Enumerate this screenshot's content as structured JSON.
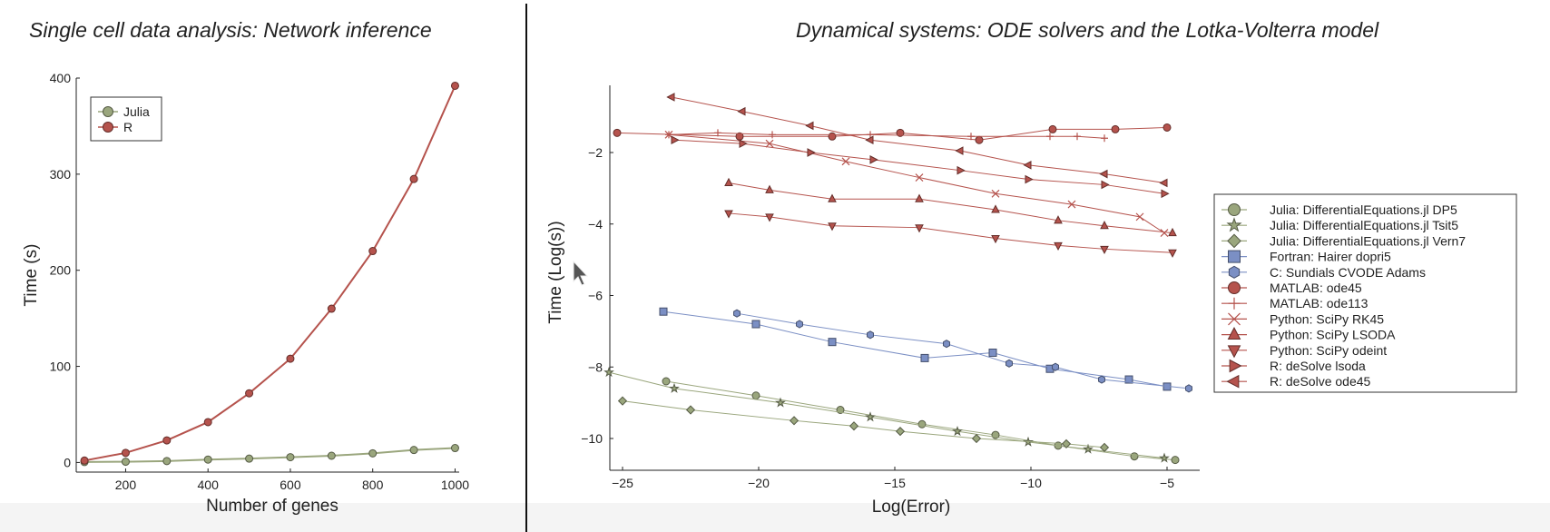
{
  "titles": {
    "left": "Single cell data analysis: Network inference",
    "right": "Dynamical systems: ODE solvers and the Lotka-Volterra model"
  },
  "chart_data": [
    {
      "type": "line",
      "xlabel": "Number of genes",
      "ylabel": "Time (s)",
      "xlim": [
        80,
        1010
      ],
      "ylim": [
        -10,
        400
      ],
      "xticks": [
        200,
        400,
        600,
        800,
        1000
      ],
      "yticks": [
        0,
        100,
        200,
        300,
        400
      ],
      "grid": false,
      "legend": "top-left",
      "x": [
        100,
        200,
        300,
        400,
        500,
        600,
        700,
        800,
        900,
        1000
      ],
      "series": [
        {
          "name": "Julia",
          "color": "#9aa67d",
          "marker": "circle",
          "values": [
            0.5,
            0.8,
            1.5,
            3.0,
            4.0,
            5.5,
            7.0,
            9.5,
            13,
            15
          ]
        },
        {
          "name": "R",
          "color": "#b5534d",
          "marker": "circle",
          "values": [
            2,
            10,
            23,
            42,
            72,
            108,
            160,
            220,
            295,
            392
          ]
        }
      ]
    },
    {
      "type": "line",
      "xlabel": "Log(Error)",
      "ylabel": "Time (Log(s))",
      "xlim": [
        -26,
        -4
      ],
      "ylim": [
        -11,
        -0.2
      ],
      "xticks": [
        -25,
        -20,
        -15,
        -10,
        -5
      ],
      "yticks": [
        -10,
        -8,
        -6,
        -4,
        -2
      ],
      "grid": false,
      "legend": "right",
      "series": [
        {
          "name": "Julia: DifferentialEquations.jl DP5",
          "color": "#9aa67d",
          "marker": "circle",
          "points": [
            [
              -23.4,
              -8.4
            ],
            [
              -20.1,
              -8.8
            ],
            [
              -17,
              -9.2
            ],
            [
              -14,
              -9.6
            ],
            [
              -11.3,
              -9.9
            ],
            [
              -9,
              -10.2
            ],
            [
              -6.2,
              -10.5
            ],
            [
              -4.7,
              -10.6
            ]
          ]
        },
        {
          "name": "Julia: DifferentialEquations.jl Tsit5",
          "color": "#9aa67d",
          "marker": "star",
          "points": [
            [
              -25.5,
              -8.15
            ],
            [
              -23.1,
              -8.6
            ],
            [
              -19.2,
              -9.0
            ],
            [
              -15.9,
              -9.4
            ],
            [
              -12.7,
              -9.8
            ],
            [
              -10.1,
              -10.1
            ],
            [
              -7.9,
              -10.3
            ],
            [
              -5.1,
              -10.55
            ]
          ]
        },
        {
          "name": "Julia: DifferentialEquations.jl Vern7",
          "color": "#9aa67d",
          "marker": "diamond",
          "points": [
            [
              -25,
              -8.95
            ],
            [
              -22.5,
              -9.2
            ],
            [
              -18.7,
              -9.5
            ],
            [
              -16.5,
              -9.65
            ],
            [
              -14.8,
              -9.8
            ],
            [
              -12,
              -10
            ],
            [
              -8.7,
              -10.15
            ],
            [
              -7.3,
              -10.25
            ]
          ]
        },
        {
          "name": "Fortran: Hairer dopri5",
          "color": "#7b8fc4",
          "marker": "square",
          "points": [
            [
              -23.5,
              -6.45
            ],
            [
              -20.1,
              -6.8
            ],
            [
              -17.3,
              -7.3
            ],
            [
              -13.9,
              -7.75
            ],
            [
              -11.4,
              -7.6
            ],
            [
              -9.3,
              -8.05
            ],
            [
              -6.4,
              -8.35
            ],
            [
              -5,
              -8.55
            ]
          ]
        },
        {
          "name": "C: Sundials CVODE Adams",
          "color": "#7b8fc4",
          "marker": "hexagon",
          "points": [
            [
              -20.8,
              -6.5
            ],
            [
              -18.5,
              -6.8
            ],
            [
              -15.9,
              -7.1
            ],
            [
              -13.1,
              -7.35
            ],
            [
              -10.8,
              -7.9
            ],
            [
              -9.1,
              -8.0
            ],
            [
              -7.4,
              -8.35
            ],
            [
              -4.2,
              -8.6
            ]
          ]
        },
        {
          "name": "MATLAB: ode45",
          "color": "#b5534d",
          "marker": "circle",
          "points": [
            [
              -25.2,
              -1.45
            ],
            [
              -20.7,
              -1.55
            ],
            [
              -17.3,
              -1.55
            ],
            [
              -14.8,
              -1.45
            ],
            [
              -11.9,
              -1.65
            ],
            [
              -9.2,
              -1.35
            ],
            [
              -6.9,
              -1.35
            ],
            [
              -5,
              -1.3
            ]
          ]
        },
        {
          "name": "MATLAB: ode113",
          "color": "#b5534d",
          "marker": "plus",
          "points": [
            [
              -23.3,
              -1.5
            ],
            [
              -21.5,
              -1.45
            ],
            [
              -19.5,
              -1.5
            ],
            [
              -15.9,
              -1.5
            ],
            [
              -12.2,
              -1.55
            ],
            [
              -9.3,
              -1.55
            ],
            [
              -8.3,
              -1.55
            ],
            [
              -7.3,
              -1.6
            ]
          ]
        },
        {
          "name": "Python: SciPy RK45",
          "color": "#b5534d",
          "marker": "cross",
          "points": [
            [
              -23.3,
              -1.5
            ],
            [
              -19.6,
              -1.75
            ],
            [
              -16.8,
              -2.25
            ],
            [
              -14.1,
              -2.7
            ],
            [
              -11.3,
              -3.15
            ],
            [
              -8.5,
              -3.45
            ],
            [
              -6,
              -3.8
            ],
            [
              -5.1,
              -4.25
            ]
          ]
        },
        {
          "name": "Python: SciPy LSODA",
          "color": "#b5534d",
          "marker": "triangle-up",
          "points": [
            [
              -21.1,
              -2.85
            ],
            [
              -19.6,
              -3.05
            ],
            [
              -17.3,
              -3.3
            ],
            [
              -14.1,
              -3.3
            ],
            [
              -11.3,
              -3.6
            ],
            [
              -9,
              -3.9
            ],
            [
              -7.3,
              -4.05
            ],
            [
              -4.8,
              -4.25
            ]
          ]
        },
        {
          "name": "Python: SciPy odeint",
          "color": "#b5534d",
          "marker": "triangle-down",
          "points": [
            [
              -21.1,
              -3.7
            ],
            [
              -19.6,
              -3.8
            ],
            [
              -17.3,
              -4.05
            ],
            [
              -14.1,
              -4.1
            ],
            [
              -11.3,
              -4.4
            ],
            [
              -9,
              -4.6
            ],
            [
              -7.3,
              -4.7
            ],
            [
              -4.8,
              -4.8
            ]
          ]
        },
        {
          "name": "R: deSolve lsoda",
          "color": "#b5534d",
          "marker": "triangle-right",
          "points": [
            [
              -23.1,
              -1.65
            ],
            [
              -20.6,
              -1.75
            ],
            [
              -18.1,
              -2.0
            ],
            [
              -15.8,
              -2.2
            ],
            [
              -12.6,
              -2.5
            ],
            [
              -10.1,
              -2.75
            ],
            [
              -7.3,
              -2.9
            ],
            [
              -5.1,
              -3.15
            ]
          ]
        },
        {
          "name": "R: deSolve ode45",
          "color": "#b5534d",
          "marker": "triangle-left",
          "points": [
            [
              -23.2,
              -0.45
            ],
            [
              -20.6,
              -0.85
            ],
            [
              -18.1,
              -1.25
            ],
            [
              -15.9,
              -1.65
            ],
            [
              -12.6,
              -1.95
            ],
            [
              -10.1,
              -2.35
            ],
            [
              -7.3,
              -2.6
            ],
            [
              -5.1,
              -2.85
            ]
          ]
        }
      ]
    }
  ]
}
